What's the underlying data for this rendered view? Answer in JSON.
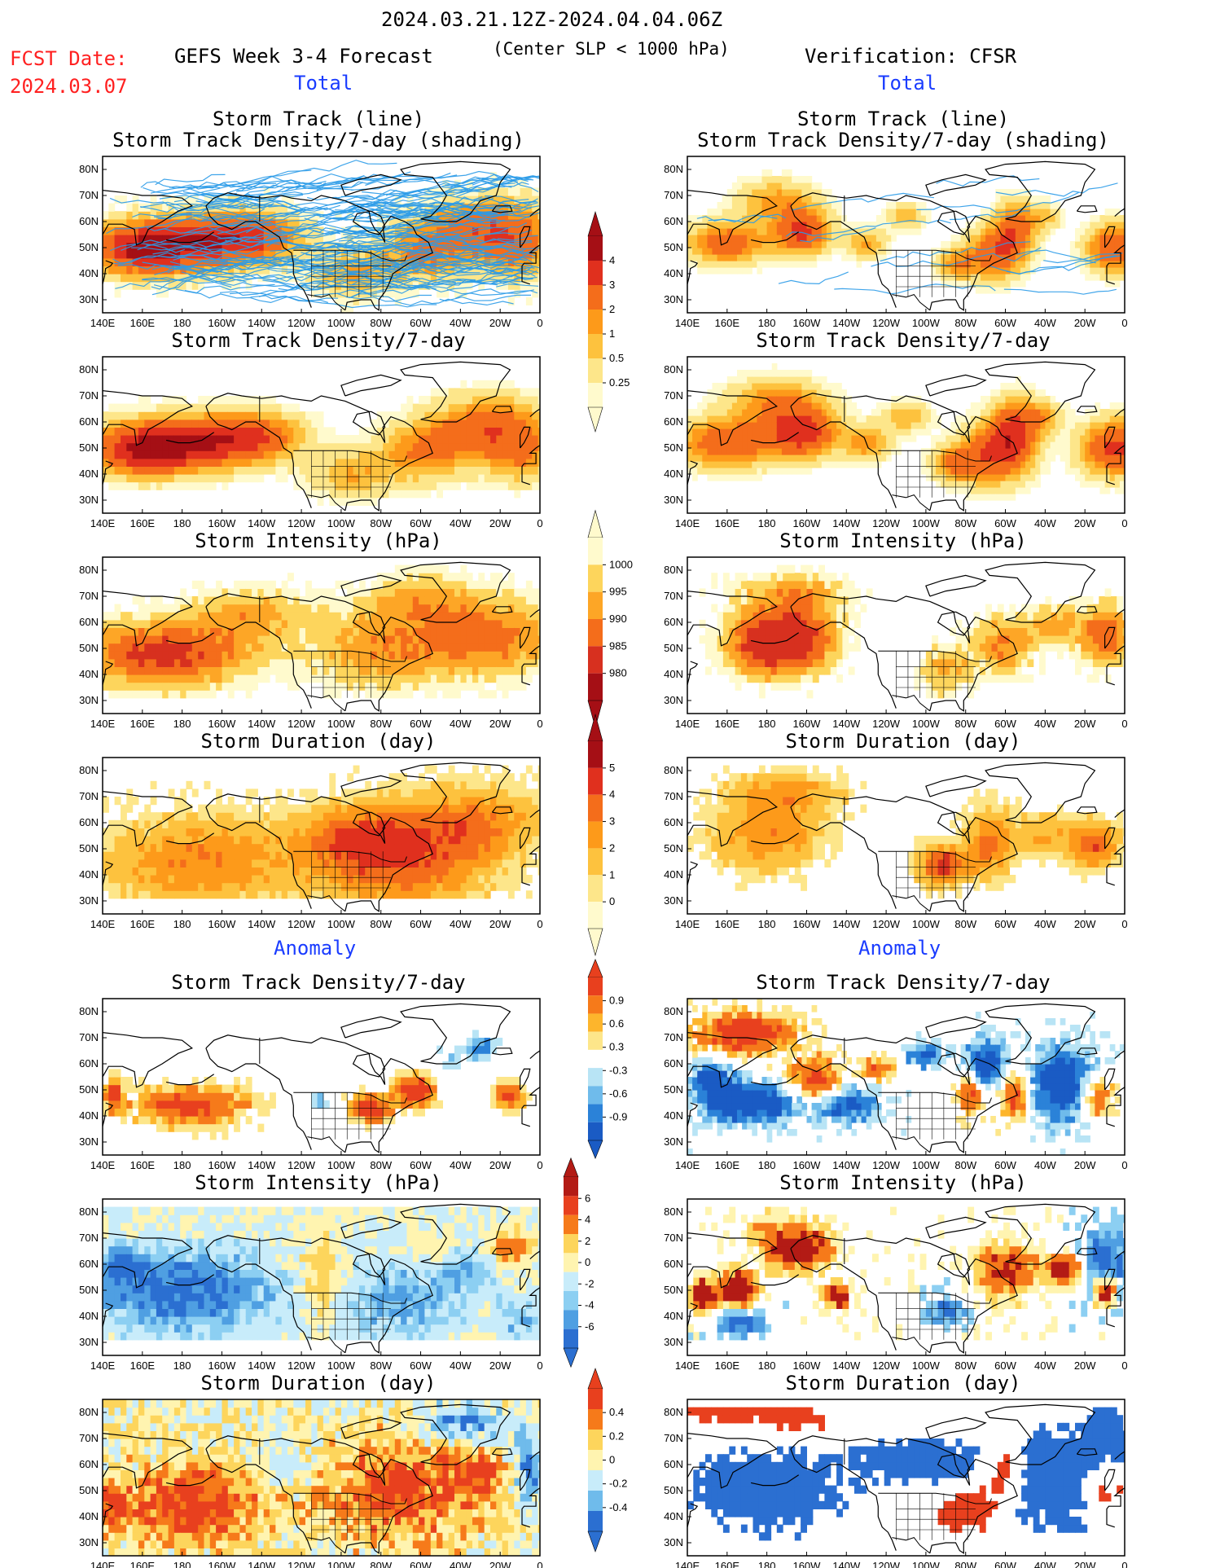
{
  "header": {
    "date_range": "2024.03.21.12Z-2024.04.04.06Z",
    "fcst_label": "FCST Date:",
    "fcst_date": "2024.03.07",
    "left_title": "GEFS Week 3-4 Forecast",
    "center_note": "(Center SLP < 1000 hPa)",
    "right_title": "Verification: CFSR",
    "total_label": "Total",
    "anomaly_label": "Anomaly"
  },
  "panel_titles": {
    "track_line": "Storm Track (line)",
    "track_density_shading": "Storm Track Density/7-day (shading)",
    "track_density": "Storm Track Density/7-day",
    "intensity": "Storm Intensity (hPa)",
    "duration": "Storm Duration (day)"
  },
  "axes": {
    "lon_labels": [
      "140E",
      "160E",
      "180",
      "160W",
      "140W",
      "120W",
      "100W",
      "80W",
      "60W",
      "40W",
      "20W",
      "0"
    ],
    "lat_labels": [
      "80N",
      "70N",
      "60N",
      "50N",
      "40N",
      "30N"
    ],
    "lon_range": [
      "140E",
      "0"
    ],
    "lat_range": [
      "25N",
      "85N"
    ]
  },
  "colorbars": {
    "density_total": {
      "ticks": [
        "4",
        "3",
        "2",
        "1",
        "0.5",
        "0.25"
      ],
      "colors": [
        "#a50f15",
        "#e0301e",
        "#f46d1b",
        "#fd9a1a",
        "#fdc23e",
        "#fde68a",
        "#fffacd"
      ]
    },
    "intensity_total": {
      "ticks": [
        "1000",
        "995",
        "990",
        "985",
        "980"
      ],
      "colors": [
        "#fffacd",
        "#fdd55c",
        "#fda626",
        "#f46d1b",
        "#d7301f",
        "#a50f15"
      ]
    },
    "duration_total": {
      "ticks": [
        "5",
        "4",
        "3",
        "2",
        "1",
        "0"
      ],
      "colors": [
        "#a50f15",
        "#e0301e",
        "#f46d1b",
        "#fd9a1a",
        "#fdc23e",
        "#fde68a",
        "#fffacd"
      ]
    },
    "density_anom": {
      "ticks": [
        "0.9",
        "0.6",
        "0.3",
        "-0.3",
        "-0.6",
        "-0.9"
      ],
      "colors": [
        "#e8401e",
        "#f67a1a",
        "#fdb52c",
        "#fde68a",
        "#ffffff",
        "#b8e4f5",
        "#6fbbeb",
        "#2b82d8",
        "#1a5bc4"
      ]
    },
    "intensity_anom": {
      "ticks": [
        "6",
        "4",
        "2",
        "0",
        "-2",
        "-4",
        "-6"
      ],
      "colors": [
        "#b31b15",
        "#e8401e",
        "#f67a1a",
        "#fdd55c",
        "#fff4b0",
        "#c8ecfa",
        "#8ccff2",
        "#4f9fe2",
        "#2b6fd1"
      ]
    },
    "duration_anom": {
      "ticks": [
        "0.4",
        "0.2",
        "0",
        "-0.2",
        "-0.4"
      ],
      "colors": [
        "#e8401e",
        "#f67a1a",
        "#fdd55c",
        "#fff4b0",
        "#c8ecfa",
        "#6fbbeb",
        "#2b6fd1"
      ]
    }
  },
  "chart_data": [
    {
      "type": "heatmap",
      "panel": "forecast-total-track",
      "title": "Storm Track (line) / Storm Track Density/7-day (shading)",
      "source": "GEFS Week 3-4 Forecast",
      "peak_regions": [
        "North Pacific 40N-60N",
        "North Atlantic 45N-65N"
      ]
    },
    {
      "type": "heatmap",
      "panel": "cfsr-total-track",
      "title": "Storm Track (line) / Storm Track Density/7-day (shading)",
      "source": "Verification: CFSR"
    },
    {
      "type": "heatmap",
      "panel": "forecast-total-density",
      "title": "Storm Track Density/7-day",
      "source": "GEFS Week 3-4 Forecast",
      "range": [
        0.25,
        4
      ]
    },
    {
      "type": "heatmap",
      "panel": "cfsr-total-density",
      "title": "Storm Track Density/7-day",
      "source": "Verification: CFSR",
      "range": [
        0.25,
        4
      ]
    },
    {
      "type": "heatmap",
      "panel": "forecast-total-intensity",
      "title": "Storm Intensity (hPa)",
      "source": "GEFS Week 3-4 Forecast",
      "range": [
        980,
        1000
      ]
    },
    {
      "type": "heatmap",
      "panel": "cfsr-total-intensity",
      "title": "Storm Intensity (hPa)",
      "source": "Verification: CFSR",
      "range": [
        980,
        1000
      ]
    },
    {
      "type": "heatmap",
      "panel": "forecast-total-duration",
      "title": "Storm Duration (day)",
      "source": "GEFS Week 3-4 Forecast",
      "range": [
        0,
        5
      ]
    },
    {
      "type": "heatmap",
      "panel": "cfsr-total-duration",
      "title": "Storm Duration (day)",
      "source": "Verification: CFSR",
      "range": [
        0,
        5
      ]
    },
    {
      "type": "heatmap",
      "panel": "forecast-anom-density",
      "title": "Storm Track Density/7-day",
      "source": "GEFS Week 3-4 Forecast",
      "range": [
        -0.9,
        0.9
      ]
    },
    {
      "type": "heatmap",
      "panel": "cfsr-anom-density",
      "title": "Storm Track Density/7-day",
      "source": "Verification: CFSR",
      "range": [
        -0.9,
        0.9
      ]
    },
    {
      "type": "heatmap",
      "panel": "forecast-anom-intensity",
      "title": "Storm Intensity (hPa)",
      "source": "GEFS Week 3-4 Forecast",
      "range": [
        -6,
        6
      ]
    },
    {
      "type": "heatmap",
      "panel": "cfsr-anom-intensity",
      "title": "Storm Intensity (hPa)",
      "source": "Verification: CFSR",
      "range": [
        -6,
        6
      ]
    },
    {
      "type": "heatmap",
      "panel": "forecast-anom-duration",
      "title": "Storm Duration (day)",
      "source": "GEFS Week 3-4 Forecast",
      "range": [
        -0.4,
        0.4
      ]
    },
    {
      "type": "heatmap",
      "panel": "cfsr-anom-duration",
      "title": "Storm Duration (day)",
      "source": "Verification: CFSR",
      "range": [
        -0.4,
        0.4
      ]
    }
  ]
}
